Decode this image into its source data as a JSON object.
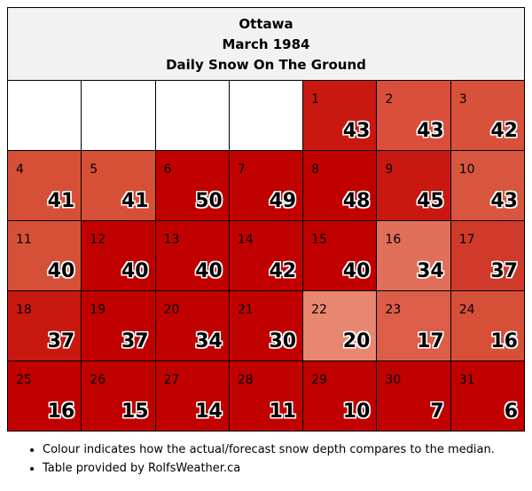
{
  "header": {
    "city": "Ottawa",
    "month": "March 1984",
    "subtitle": "Daily Snow On The Ground"
  },
  "weeks": [
    [
      {
        "day": "",
        "value": "",
        "color": "#ffffff"
      },
      {
        "day": "",
        "value": "",
        "color": "#ffffff"
      },
      {
        "day": "",
        "value": "",
        "color": "#ffffff"
      },
      {
        "day": "",
        "value": "",
        "color": "#ffffff"
      },
      {
        "day": "1",
        "value": "43",
        "color": "#c8180f"
      },
      {
        "day": "2",
        "value": "43",
        "color": "#d94f3b"
      },
      {
        "day": "3",
        "value": "42",
        "color": "#d8513a"
      }
    ],
    [
      {
        "day": "4",
        "value": "41",
        "color": "#d65038"
      },
      {
        "day": "5",
        "value": "41",
        "color": "#d65038"
      },
      {
        "day": "6",
        "value": "50",
        "color": "#c10000"
      },
      {
        "day": "7",
        "value": "49",
        "color": "#c10000"
      },
      {
        "day": "8",
        "value": "48",
        "color": "#c10000"
      },
      {
        "day": "9",
        "value": "45",
        "color": "#c8180f"
      },
      {
        "day": "10",
        "value": "43",
        "color": "#d8563f"
      }
    ],
    [
      {
        "day": "11",
        "value": "40",
        "color": "#d65038"
      },
      {
        "day": "12",
        "value": "40",
        "color": "#c10000"
      },
      {
        "day": "13",
        "value": "40",
        "color": "#c10000"
      },
      {
        "day": "14",
        "value": "42",
        "color": "#c10000"
      },
      {
        "day": "15",
        "value": "40",
        "color": "#c10000"
      },
      {
        "day": "16",
        "value": "34",
        "color": "#e06e59"
      },
      {
        "day": "17",
        "value": "37",
        "color": "#d03a2b"
      }
    ],
    [
      {
        "day": "18",
        "value": "37",
        "color": "#c8180f"
      },
      {
        "day": "19",
        "value": "37",
        "color": "#c10000"
      },
      {
        "day": "20",
        "value": "34",
        "color": "#c10000"
      },
      {
        "day": "21",
        "value": "30",
        "color": "#c10000"
      },
      {
        "day": "22",
        "value": "20",
        "color": "#e8876f"
      },
      {
        "day": "23",
        "value": "17",
        "color": "#dc5e48"
      },
      {
        "day": "24",
        "value": "16",
        "color": "#d65038"
      }
    ],
    [
      {
        "day": "25",
        "value": "16",
        "color": "#c10000"
      },
      {
        "day": "26",
        "value": "15",
        "color": "#c10000"
      },
      {
        "day": "27",
        "value": "14",
        "color": "#c10000"
      },
      {
        "day": "28",
        "value": "11",
        "color": "#c10000"
      },
      {
        "day": "29",
        "value": "10",
        "color": "#c10000"
      },
      {
        "day": "30",
        "value": "7",
        "color": "#c10000"
      },
      {
        "day": "31",
        "value": "6",
        "color": "#c10000"
      }
    ]
  ],
  "notes": [
    "Colour indicates how the actual/forecast snow depth compares to the median.",
    "Table provided by RolfsWeather.ca"
  ]
}
